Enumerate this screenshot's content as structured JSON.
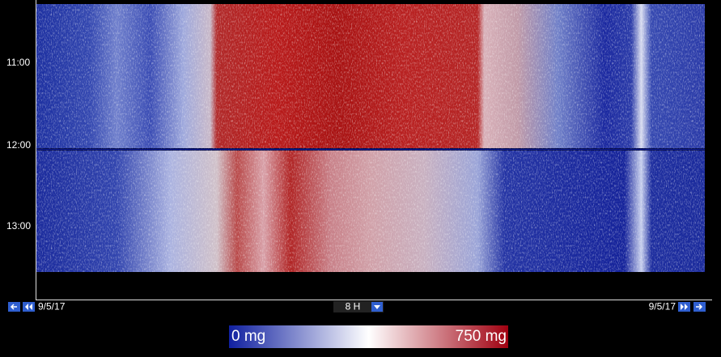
{
  "time_labels": [
    "11:00",
    "12:00",
    "13:00"
  ],
  "toolbar": {
    "start_date": "9/5/17",
    "span": "8 H",
    "end_date": "9/5/17"
  },
  "scale": {
    "min_label": "0 mg",
    "max_label": "750 mg"
  }
}
